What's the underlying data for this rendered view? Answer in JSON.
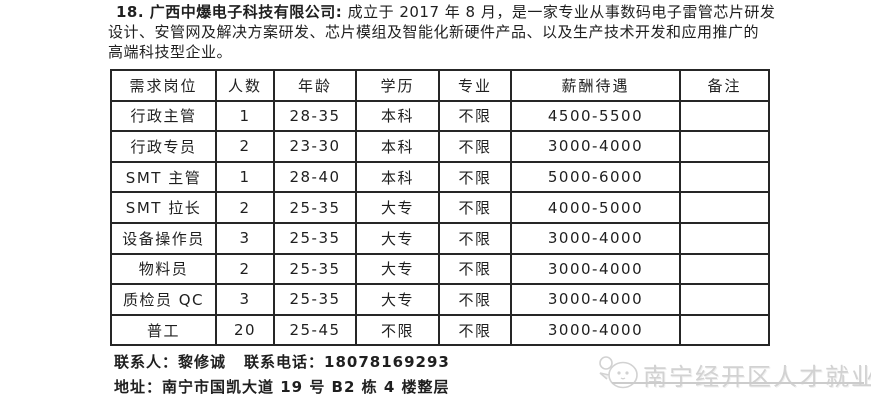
{
  "intro": {
    "heading": "18. 广西中爆电子科技有限公司:",
    "line1_rest": " 成立于 2017 年 8 月，是一家专业从事数码电子雷管芯片研发",
    "line2": "设计、安管网及解决方案研发、芯片模组及智能化新硬件产品、以及生产技术开发和应用推广的",
    "line3": "高端科技型企业。"
  },
  "table": {
    "headers": [
      "需求岗位",
      "人数",
      "年龄",
      "学历",
      "专业",
      "薪酬待遇",
      "备注"
    ],
    "rows": [
      [
        "行政主管",
        "1",
        "28-35",
        "本科",
        "不限",
        "4500-5500",
        ""
      ],
      [
        "行政专员",
        "2",
        "23-30",
        "本科",
        "不限",
        "3000-4000",
        ""
      ],
      [
        "SMT 主管",
        "1",
        "28-40",
        "本科",
        "不限",
        "5000-6000",
        ""
      ],
      [
        "SMT 拉长",
        "2",
        "25-35",
        "大专",
        "不限",
        "4000-5000",
        ""
      ],
      [
        "设备操作员",
        "3",
        "25-35",
        "大专",
        "不限",
        "3000-4000",
        ""
      ],
      [
        "物料员",
        "2",
        "25-35",
        "大专",
        "不限",
        "3000-4000",
        ""
      ],
      [
        "质检员 QC",
        "3",
        "25-35",
        "大专",
        "不限",
        "3000-4000",
        ""
      ],
      [
        "普工",
        "20",
        "25-45",
        "不限",
        "不限",
        "3000-4000",
        ""
      ]
    ]
  },
  "contact": {
    "person_label": "联系人：",
    "person_name": "黎修诚",
    "phone_label": "联系电话：",
    "phone_number": "18078169293",
    "address_label": "地址：",
    "address": "南宁市国凯大道 19 号 B2 栋 4 楼整层"
  },
  "watermark": {
    "text": "南宁经开区人才就业",
    "icon": "chick-mascot-icon"
  },
  "colors": {
    "ink": "#1f1f1f",
    "table_border": "#262626",
    "watermark_gray": "#d2d2d2"
  }
}
